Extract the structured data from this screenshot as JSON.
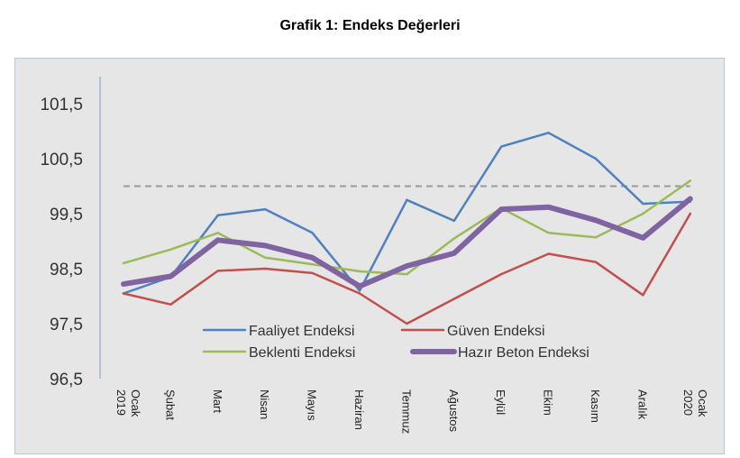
{
  "title": "Grafik 1: Endeks Değerleri",
  "chart_data": {
    "type": "line",
    "title": "Grafik 1: Endeks Değerleri",
    "xlabel": "",
    "ylabel": "",
    "categories": [
      "Ocak 2019",
      "Şubat",
      "Mart",
      "Nisan",
      "Mayıs",
      "Haziran",
      "Temmuz",
      "Ağustos",
      "Eylül",
      "Ekim",
      "Kasım",
      "Aralık",
      "Ocak 2020"
    ],
    "ylim": [
      96.5,
      102
    ],
    "yticks": [
      "96,5",
      "97,5",
      "98,5",
      "99,5",
      "100,5",
      "101,5"
    ],
    "ytick_values": [
      96.5,
      97.5,
      98.5,
      99.5,
      100.5,
      101.5
    ],
    "reference_line": 100,
    "grid": false,
    "legend_position": "inside-bottom-center",
    "series": [
      {
        "name": "Faaliyet Endeksi",
        "color": "#4f81bd",
        "width": 2.5,
        "values": [
          98.05,
          98.35,
          99.47,
          99.58,
          99.15,
          98.1,
          99.75,
          99.37,
          100.72,
          100.97,
          100.5,
          99.68,
          99.72
        ]
      },
      {
        "name": "Güven Endeksi",
        "color": "#c0504d",
        "width": 2.5,
        "values": [
          98.05,
          97.85,
          98.46,
          98.5,
          98.42,
          98.05,
          97.5,
          97.95,
          98.4,
          98.77,
          98.62,
          98.02,
          99.5
        ]
      },
      {
        "name": "Beklenti Endeksi",
        "color": "#9bbb59",
        "width": 2.5,
        "values": [
          98.6,
          98.85,
          99.15,
          98.7,
          98.58,
          98.45,
          98.4,
          99.05,
          99.6,
          99.15,
          99.07,
          99.5,
          100.1
        ]
      },
      {
        "name": "Hazır Beton Endeksi",
        "color": "#8064a2",
        "width": 6,
        "values": [
          98.22,
          98.36,
          99.02,
          98.92,
          98.7,
          98.18,
          98.55,
          98.78,
          99.58,
          99.62,
          99.38,
          99.06,
          99.77
        ]
      }
    ]
  },
  "x_labels": [
    [
      "Ocak",
      "2019"
    ],
    [
      "Şubat"
    ],
    [
      "Mart"
    ],
    [
      "Nisan"
    ],
    [
      "Mayıs"
    ],
    [
      "Haziran"
    ],
    [
      "Temmuz"
    ],
    [
      "Ağustos"
    ],
    [
      "Eylül"
    ],
    [
      "Ekim"
    ],
    [
      "Kasım"
    ],
    [
      "Aralık"
    ],
    [
      "Ocak",
      "2020"
    ]
  ]
}
